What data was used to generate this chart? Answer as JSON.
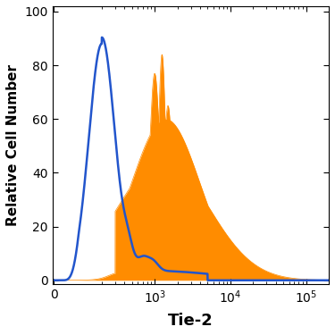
{
  "xlabel": "Tie-2",
  "ylabel": "Relative Cell Number",
  "xlabel_fontsize": 13,
  "ylabel_fontsize": 11,
  "xlabel_fontweight": "bold",
  "ylabel_fontweight": "bold",
  "ylim": [
    -1.5,
    102
  ],
  "blue_color": "#2255cc",
  "orange_color": "#ff8c00",
  "tick_fontsize": 10,
  "figsize": [
    3.75,
    3.75
  ],
  "dpi": 100,
  "linthresh": 100,
  "linscale": 0.3
}
